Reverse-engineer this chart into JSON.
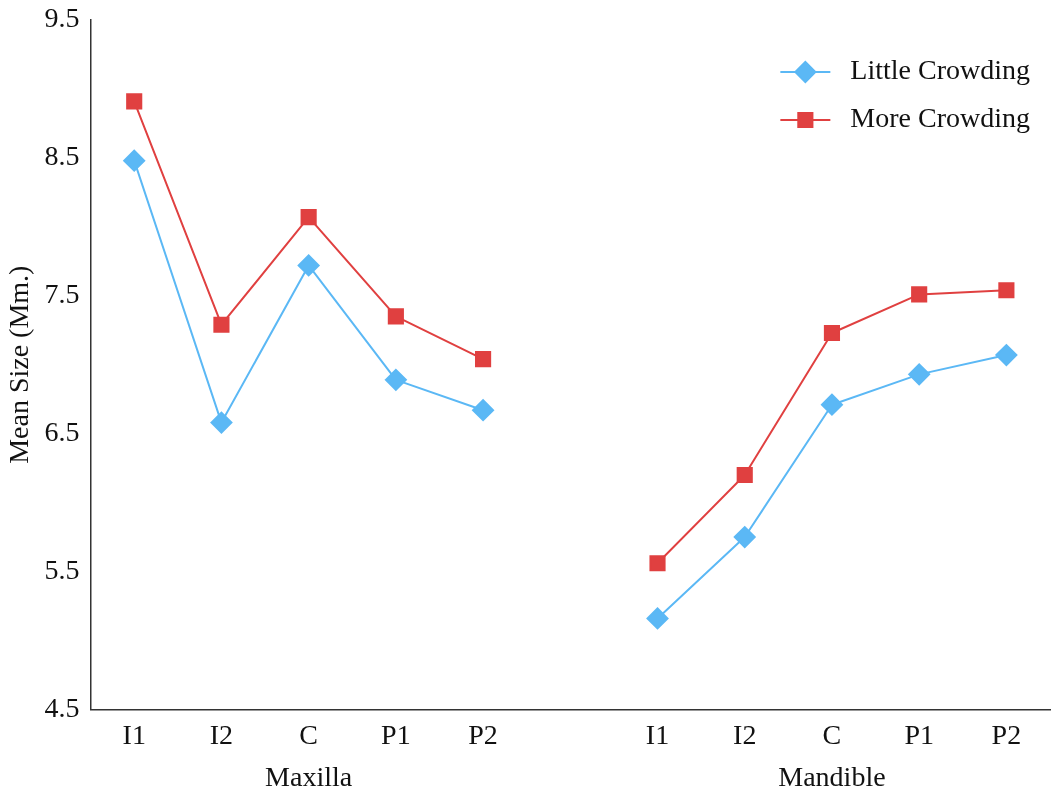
{
  "chart_data": {
    "type": "line",
    "ylabel": "Mean Size (Mm.)",
    "categories": [
      "I1",
      "I2",
      "C",
      "P1",
      "P2",
      null,
      "I1",
      "I2",
      "C",
      "P1",
      "P2"
    ],
    "series": [
      {
        "name": "Little Crowding",
        "color": "#5bb8f5",
        "marker": "diamond",
        "values": [
          8.48,
          6.58,
          7.72,
          6.89,
          6.67,
          null,
          5.16,
          5.75,
          6.71,
          6.93,
          7.07
        ]
      },
      {
        "name": "More Crowding",
        "color": "#e04040",
        "marker": "square",
        "values": [
          8.91,
          7.29,
          8.07,
          7.35,
          7.04,
          null,
          5.56,
          6.2,
          7.23,
          7.51,
          7.54
        ]
      }
    ],
    "ylim": [
      4.5,
      9.5
    ],
    "yticks": [
      4.5,
      5.5,
      6.5,
      7.5,
      8.5,
      9.5
    ],
    "grid": false,
    "legend": "top right",
    "annotations": [
      "Maxilla",
      "Mandible"
    ]
  }
}
